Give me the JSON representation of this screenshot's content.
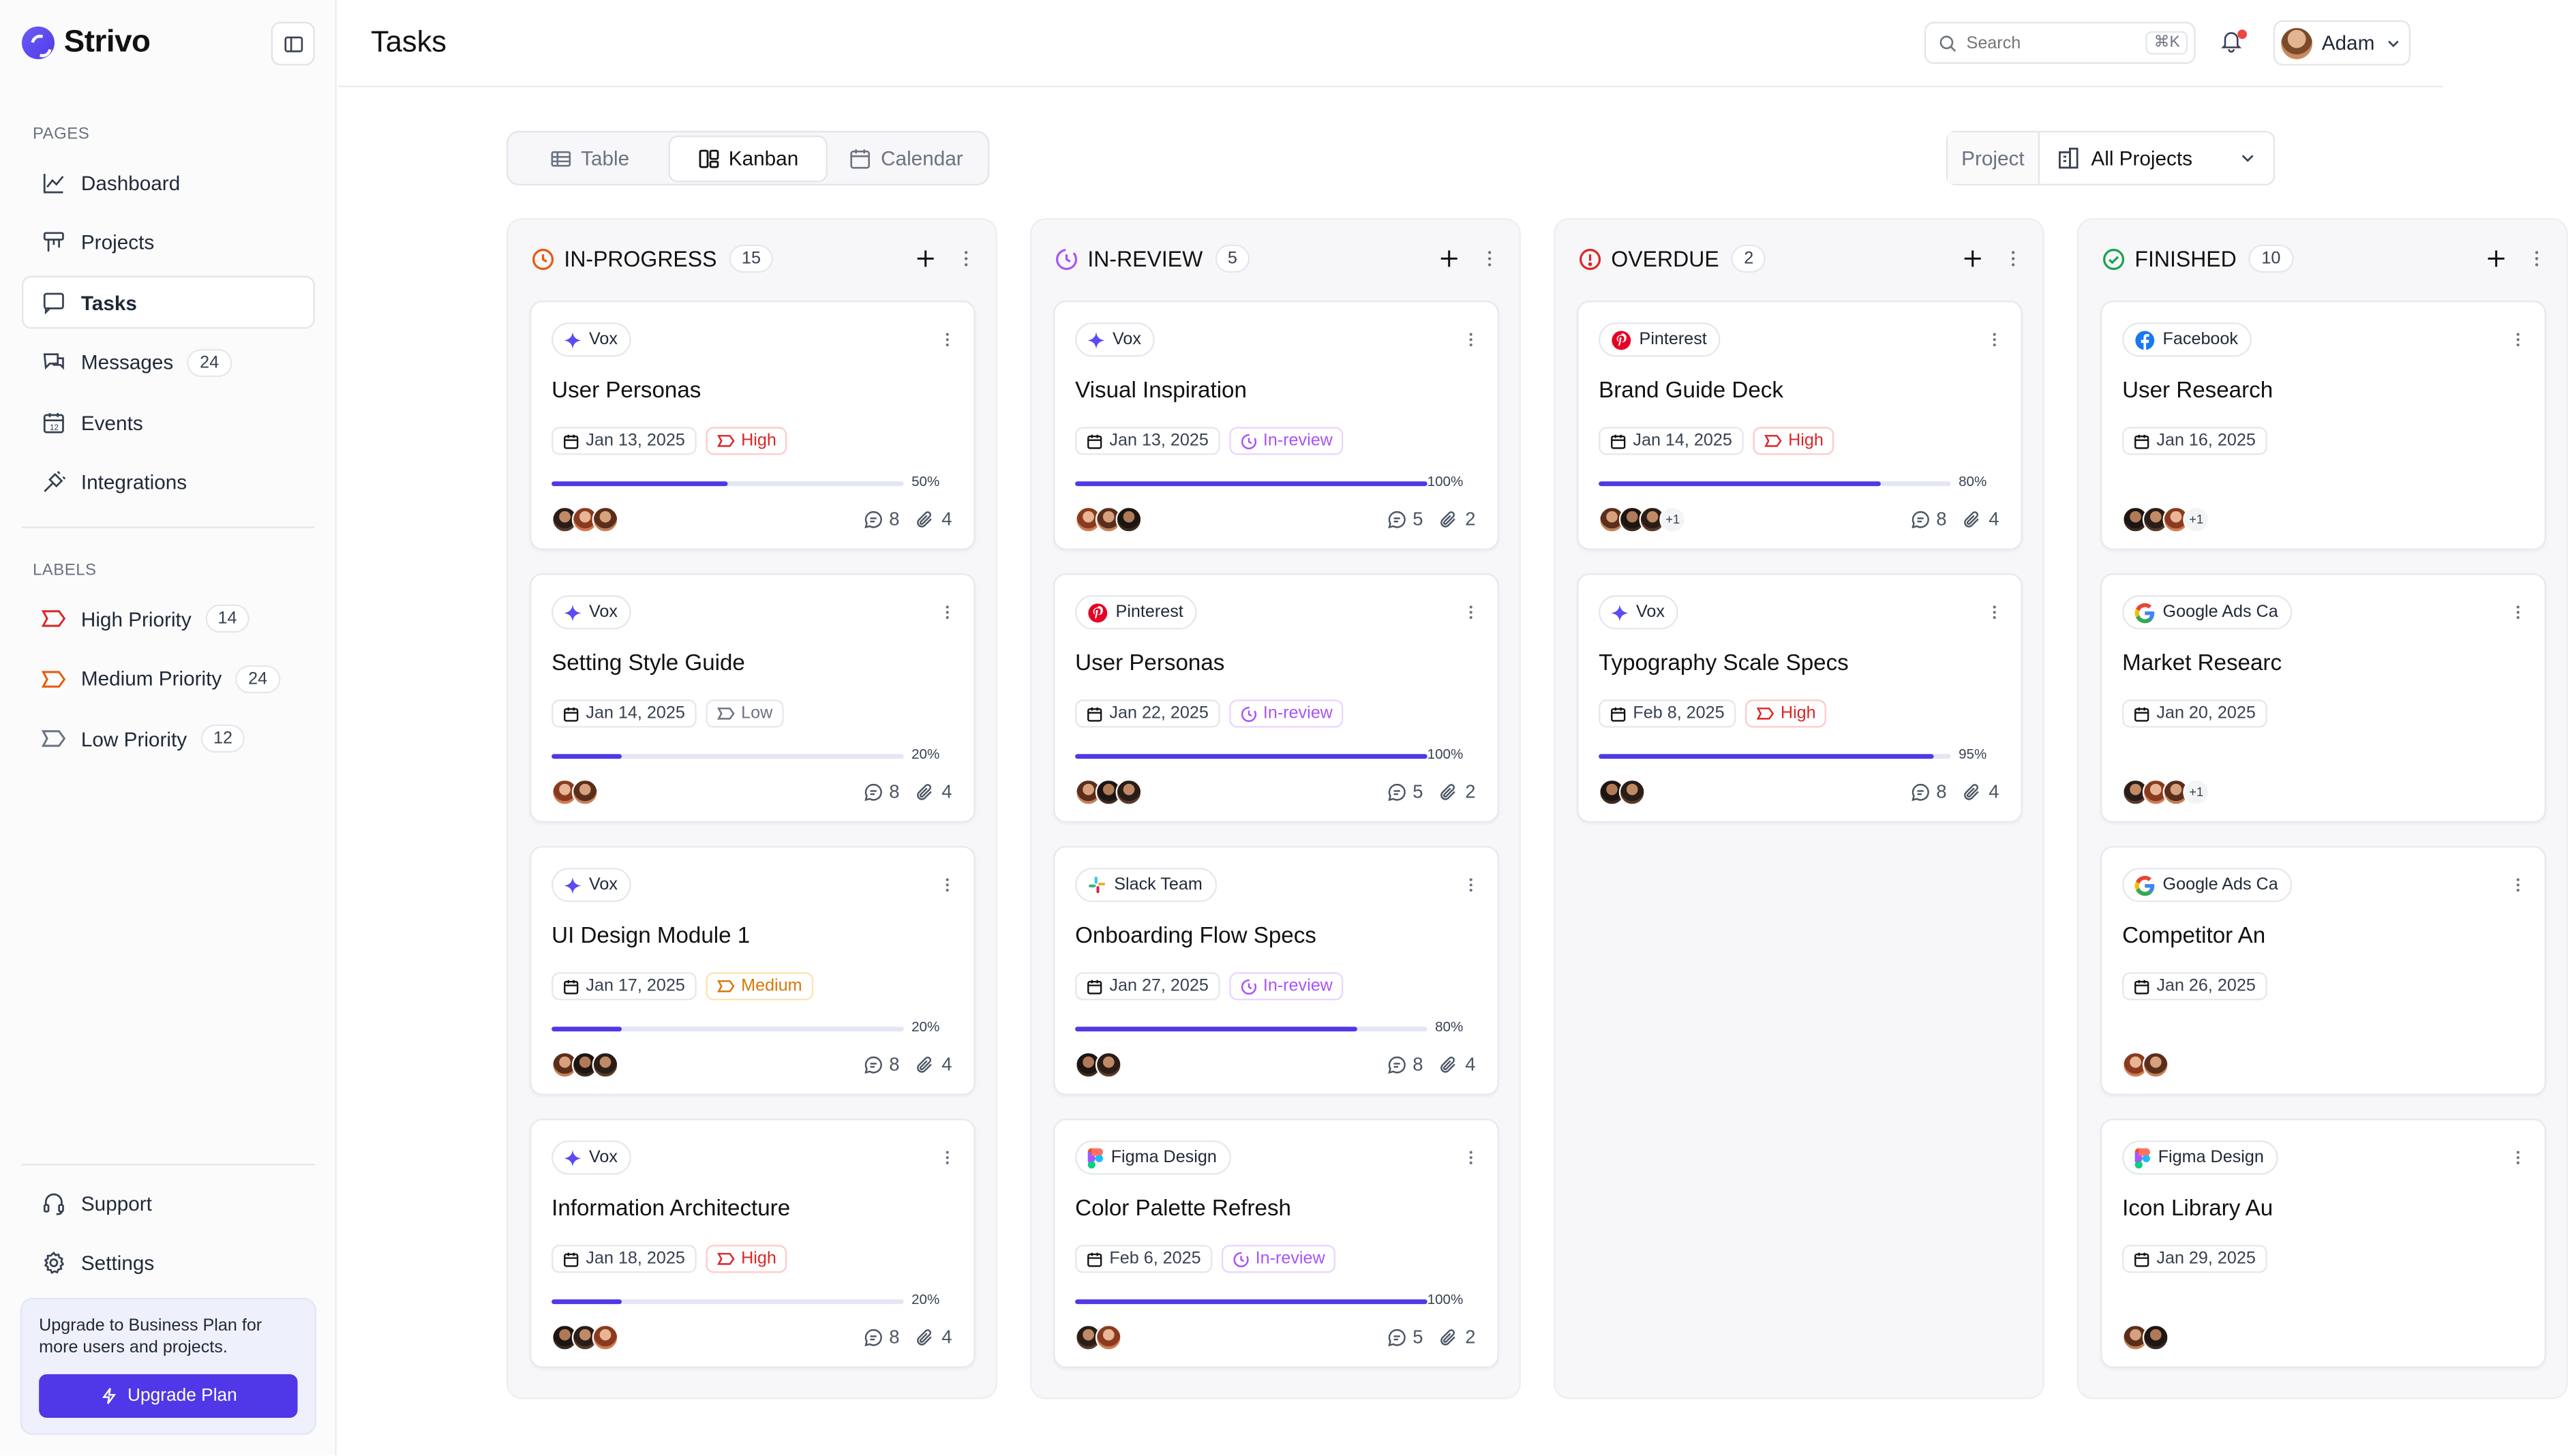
{
  "brand": {
    "name": "Strivo"
  },
  "sidebar": {
    "pages_label": "PAGES",
    "items": [
      {
        "label": "Dashboard",
        "icon": "chart-line-icon"
      },
      {
        "label": "Projects",
        "icon": "projects-icon"
      },
      {
        "label": "Tasks",
        "icon": "tasks-icon"
      },
      {
        "label": "Messages",
        "icon": "messages-icon",
        "badge": "24"
      },
      {
        "label": "Events",
        "icon": "calendar-icon"
      },
      {
        "label": "Integrations",
        "icon": "plug-icon"
      }
    ],
    "labels_label": "LABELS",
    "labels": [
      {
        "label": "High Priority",
        "count": "14",
        "color": "#dc2626"
      },
      {
        "label": "Medium Priority",
        "count": "24",
        "color": "#ea580c"
      },
      {
        "label": "Low Priority",
        "count": "12",
        "color": "#6b7280"
      }
    ],
    "support": "Support",
    "settings": "Settings",
    "upgrade_text": "Upgrade to Business Plan for more users and projects.",
    "upgrade_button": "Upgrade Plan"
  },
  "header": {
    "title": "Tasks",
    "search_placeholder": "Search",
    "search_shortcut": "⌘K",
    "user_name": "Adam"
  },
  "views": {
    "tabs": [
      "Table",
      "Kanban",
      "Calendar"
    ],
    "active": "Kanban"
  },
  "filter": {
    "label": "Project",
    "value": "All Projects"
  },
  "columns": [
    {
      "title": "IN-PROGRESS",
      "count": "15",
      "color": "#ea580c",
      "cards": [
        {
          "tag": "Vox",
          "tag_icon": "vox",
          "title": "User Personas",
          "date": "Jan 13, 2025",
          "status": "High",
          "status_kind": "high",
          "progress": 50,
          "progress_label": "50%",
          "avatars": 3,
          "more": "",
          "comments": "8",
          "attachments": "4"
        },
        {
          "tag": "Vox",
          "tag_icon": "vox",
          "title": "Setting Style Guide",
          "date": "Jan 14, 2025",
          "status": "Low",
          "status_kind": "low",
          "progress": 20,
          "progress_label": "20%",
          "avatars": 2,
          "more": "",
          "comments": "8",
          "attachments": "4"
        },
        {
          "tag": "Vox",
          "tag_icon": "vox",
          "title": "UI Design Module 1",
          "date": "Jan 17, 2025",
          "status": "Medium",
          "status_kind": "medium",
          "progress": 20,
          "progress_label": "20%",
          "avatars": 3,
          "more": "",
          "comments": "8",
          "attachments": "4"
        },
        {
          "tag": "Vox",
          "tag_icon": "vox",
          "title": "Information Architecture",
          "date": "Jan 18, 2025",
          "status": "High",
          "status_kind": "high",
          "progress": 20,
          "progress_label": "20%",
          "avatars": 3,
          "more": "",
          "comments": "8",
          "attachments": "4"
        }
      ]
    },
    {
      "title": "IN-REVIEW",
      "count": "5",
      "color": "#a855f7",
      "cards": [
        {
          "tag": "Vox",
          "tag_icon": "vox",
          "title": "Visual Inspiration",
          "date": "Jan 13, 2025",
          "status": "In-review",
          "status_kind": "review",
          "progress": 100,
          "progress_label": "100%",
          "avatars": 3,
          "more": "",
          "comments": "5",
          "attachments": "2"
        },
        {
          "tag": "Pinterest",
          "tag_icon": "pinterest",
          "title": "User Personas",
          "date": "Jan 22, 2025",
          "status": "In-review",
          "status_kind": "review",
          "progress": 100,
          "progress_label": "100%",
          "avatars": 3,
          "more": "",
          "comments": "5",
          "attachments": "2"
        },
        {
          "tag": "Slack Team",
          "tag_icon": "slack",
          "title": "Onboarding Flow Specs",
          "date": "Jan 27, 2025",
          "status": "In-review",
          "status_kind": "review",
          "progress": 80,
          "progress_label": "80%",
          "avatars": 2,
          "more": "",
          "comments": "8",
          "attachments": "4"
        },
        {
          "tag": "Figma Design",
          "tag_icon": "figma",
          "title": "Color Palette Refresh",
          "date": "Feb 6, 2025",
          "status": "In-review",
          "status_kind": "review",
          "progress": 100,
          "progress_label": "100%",
          "avatars": 2,
          "more": "",
          "comments": "5",
          "attachments": "2"
        }
      ]
    },
    {
      "title": "OVERDUE",
      "count": "2",
      "color": "#dc2626",
      "cards": [
        {
          "tag": "Pinterest",
          "tag_icon": "pinterest",
          "title": "Brand Guide Deck",
          "date": "Jan 14, 2025",
          "status": "High",
          "status_kind": "high",
          "progress": 80,
          "progress_label": "80%",
          "avatars": 3,
          "more": "+1",
          "comments": "8",
          "attachments": "4"
        },
        {
          "tag": "Vox",
          "tag_icon": "vox",
          "title": "Typography Scale Specs",
          "date": "Feb 8, 2025",
          "status": "High",
          "status_kind": "high",
          "progress": 95,
          "progress_label": "95%",
          "avatars": 2,
          "more": "",
          "comments": "8",
          "attachments": "4"
        }
      ]
    },
    {
      "title": "FINISHED",
      "count": "10",
      "color": "#16a34a",
      "cards": [
        {
          "tag": "Facebook",
          "tag_icon": "facebook",
          "title": "User Research",
          "date": "Jan 16, 2025",
          "status": "",
          "status_kind": "",
          "progress": null,
          "progress_label": "",
          "avatars": 3,
          "more": "+1",
          "comments": "",
          "attachments": ""
        },
        {
          "tag": "Google Ads Ca",
          "tag_icon": "google",
          "title": "Market Researc",
          "date": "Jan 20, 2025",
          "status": "",
          "status_kind": "",
          "progress": null,
          "progress_label": "",
          "avatars": 3,
          "more": "+1",
          "comments": "",
          "attachments": ""
        },
        {
          "tag": "Google Ads Ca",
          "tag_icon": "google",
          "title": "Competitor An",
          "date": "Jan 26, 2025",
          "status": "",
          "status_kind": "",
          "progress": null,
          "progress_label": "",
          "avatars": 2,
          "more": "",
          "comments": "",
          "attachments": ""
        },
        {
          "tag": "Figma Design",
          "tag_icon": "figma",
          "title": "Icon Library Au",
          "date": "Jan 29, 2025",
          "status": "",
          "status_kind": "",
          "progress": null,
          "progress_label": "",
          "avatars": 2,
          "more": "",
          "comments": "",
          "attachments": ""
        }
      ]
    }
  ]
}
